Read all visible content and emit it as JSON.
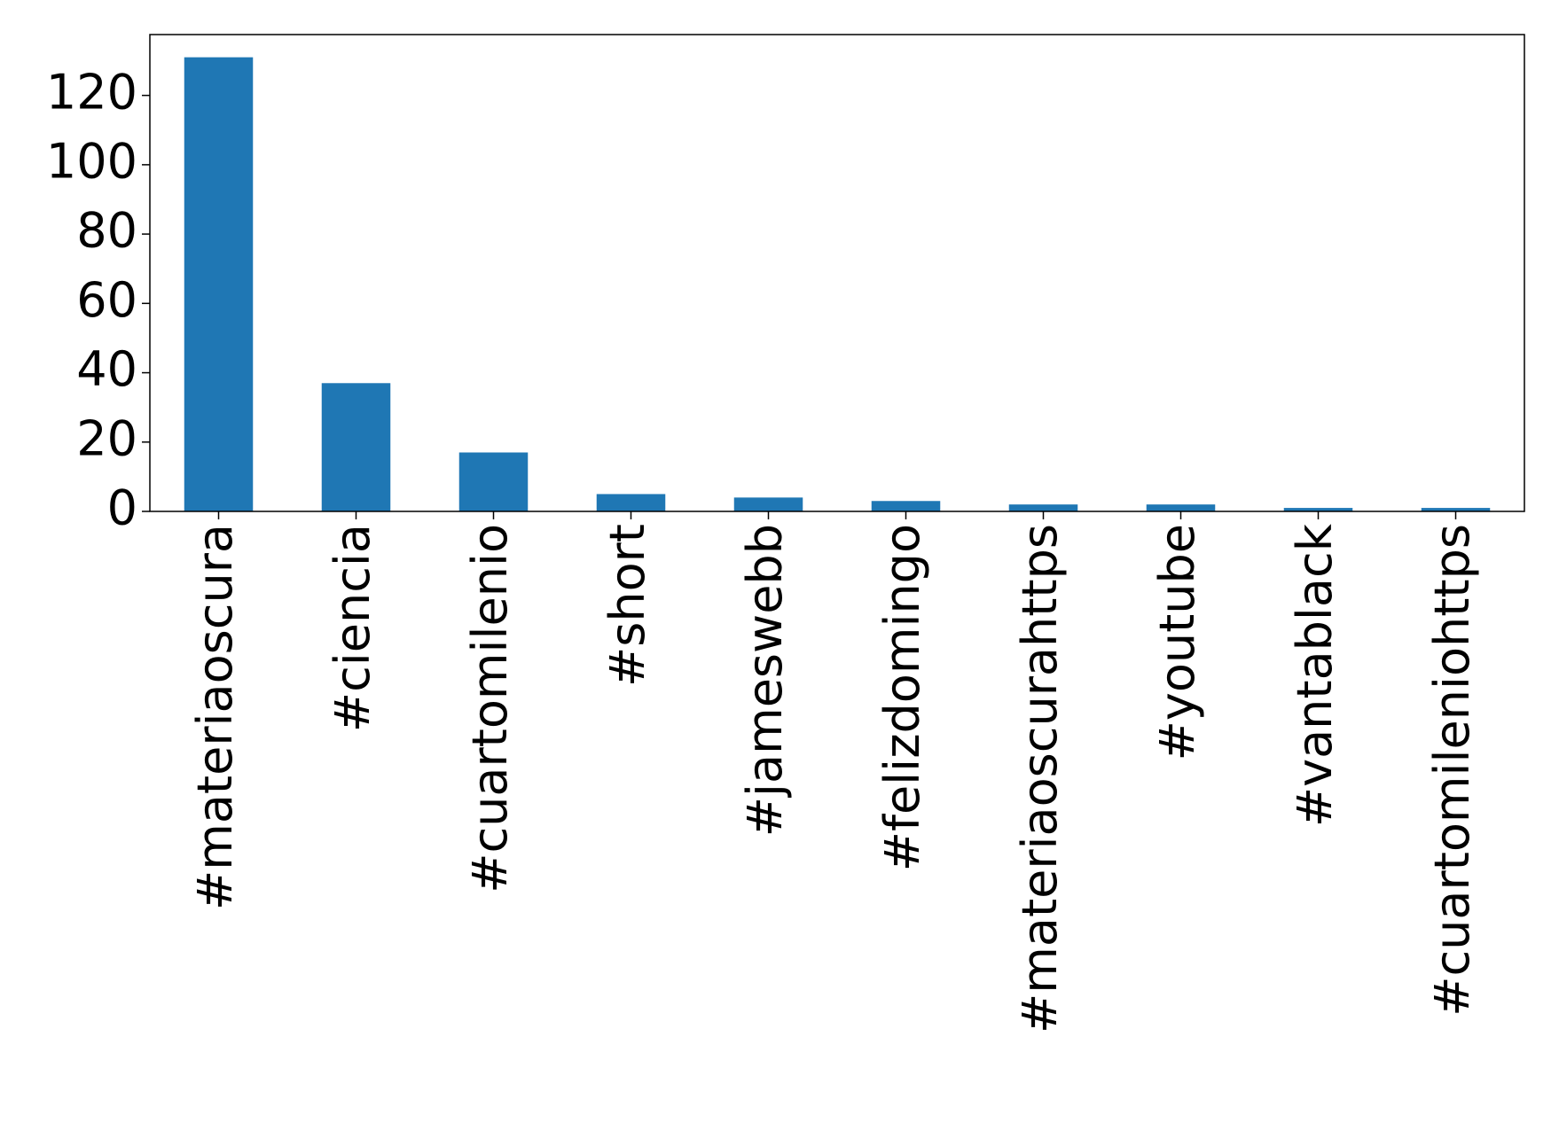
{
  "chart_data": {
    "type": "bar",
    "categories": [
      "#materiaoscura",
      "#ciencia",
      "#cuartomilenio",
      "#short",
      "#jameswebb",
      "#felizdomingo",
      "#materiaoscurahttps",
      "#youtube",
      "#vantablack",
      "#cuartomileniohttps"
    ],
    "values": [
      131,
      37,
      17,
      5,
      4,
      3,
      2,
      2,
      1,
      1
    ],
    "color": "#1f77b4",
    "ylim": [
      0,
      137.55
    ],
    "yticks": [
      0,
      20,
      40,
      60,
      80,
      100,
      120
    ],
    "grid": false
  }
}
